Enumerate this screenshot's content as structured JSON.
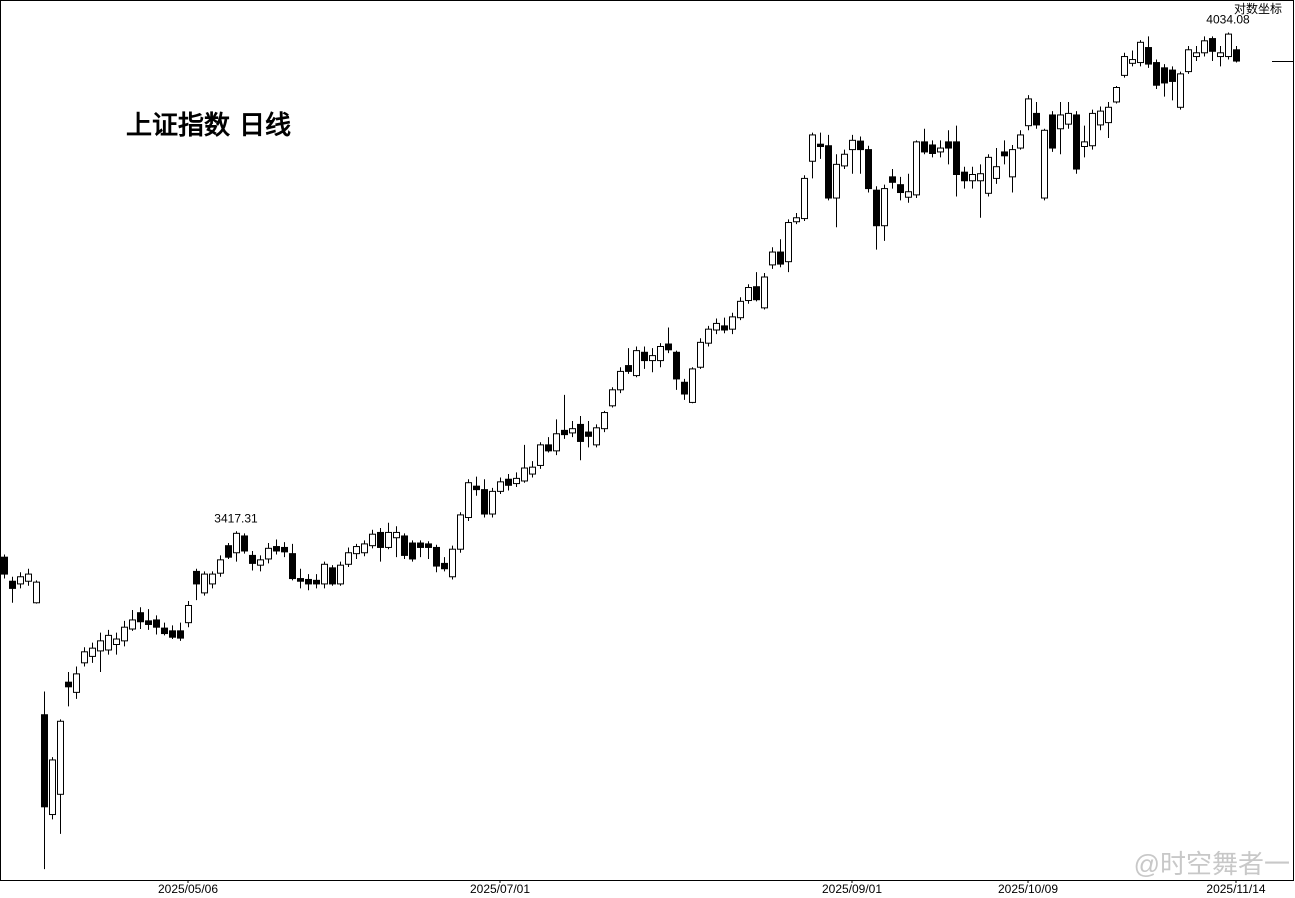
{
  "chart_data": {
    "type": "candlestick",
    "title": "上证指数 日线",
    "scale_label": "对数坐标",
    "watermark": "@时空舞者一",
    "log_scale": true,
    "up_color": "#ffffff",
    "down_color": "#000000",
    "ylim": [
      3043,
      4078
    ],
    "xlim": [
      -0.5,
      158.5
    ],
    "xticks": [
      {
        "value": 23,
        "label": "2025/05/06"
      },
      {
        "value": 62,
        "label": "2025/07/01"
      },
      {
        "value": 106,
        "label": "2025/09/01"
      },
      {
        "value": 128,
        "label": "2025/10/09"
      },
      {
        "value": 154,
        "label": "2025/11/14"
      }
    ],
    "annotated": [
      29,
      153
    ],
    "candles": [
      [
        3388,
        3391,
        3364,
        3369
      ],
      [
        3361,
        3366,
        3337,
        3353
      ],
      [
        3358,
        3371,
        3353,
        3366
      ],
      [
        3361,
        3375,
        3356,
        3369
      ],
      [
        3337,
        3362,
        3336,
        3360
      ],
      [
        3215,
        3240,
        3054,
        3118
      ],
      [
        3110,
        3170,
        3105,
        3167
      ],
      [
        3131,
        3210,
        3090,
        3208
      ],
      [
        3250,
        3261,
        3224,
        3245
      ],
      [
        3239,
        3267,
        3232,
        3259
      ],
      [
        3271,
        3288,
        3267,
        3283
      ],
      [
        3278,
        3293,
        3271,
        3287
      ],
      [
        3284,
        3304,
        3261,
        3295
      ],
      [
        3285,
        3307,
        3280,
        3301
      ],
      [
        3291,
        3304,
        3280,
        3297
      ],
      [
        3295,
        3317,
        3289,
        3310
      ],
      [
        3308,
        3329,
        3306,
        3318
      ],
      [
        3326,
        3332,
        3308,
        3316
      ],
      [
        3317,
        3330,
        3307,
        3313
      ],
      [
        3318,
        3323,
        3302,
        3310
      ],
      [
        3309,
        3315,
        3301,
        3303
      ],
      [
        3306,
        3312,
        3297,
        3299
      ],
      [
        3306,
        3315,
        3295,
        3298
      ],
      [
        3315,
        3339,
        3310,
        3334
      ],
      [
        3372,
        3375,
        3340,
        3358
      ],
      [
        3348,
        3372,
        3345,
        3369
      ],
      [
        3358,
        3372,
        3353,
        3369
      ],
      [
        3370,
        3390,
        3366,
        3385
      ],
      [
        3401,
        3404,
        3386,
        3388
      ],
      [
        3393,
        3417.31,
        3383,
        3415
      ],
      [
        3412,
        3415,
        3392,
        3395
      ],
      [
        3390,
        3395,
        3373,
        3381
      ],
      [
        3379,
        3390,
        3372,
        3385
      ],
      [
        3386,
        3404,
        3381,
        3398
      ],
      [
        3400,
        3408,
        3391,
        3395
      ],
      [
        3399,
        3405,
        3388,
        3394
      ],
      [
        3392,
        3403,
        3362,
        3364
      ],
      [
        3364,
        3375,
        3353,
        3361
      ],
      [
        3363,
        3369,
        3351,
        3358
      ],
      [
        3362,
        3369,
        3353,
        3358
      ],
      [
        3358,
        3383,
        3353,
        3380
      ],
      [
        3376,
        3379,
        3356,
        3358
      ],
      [
        3358,
        3383,
        3356,
        3379
      ],
      [
        3380,
        3399,
        3377,
        3393
      ],
      [
        3392,
        3403,
        3386,
        3400
      ],
      [
        3393,
        3407,
        3389,
        3403
      ],
      [
        3401,
        3419,
        3398,
        3414
      ],
      [
        3416,
        3421,
        3383,
        3399
      ],
      [
        3399,
        3427,
        3397,
        3416
      ],
      [
        3410,
        3423,
        3388,
        3416
      ],
      [
        3412,
        3415,
        3386,
        3390
      ],
      [
        3404,
        3407,
        3383,
        3386
      ],
      [
        3404,
        3407,
        3388,
        3399
      ],
      [
        3403,
        3406,
        3386,
        3399
      ],
      [
        3399,
        3402,
        3371,
        3378
      ],
      [
        3381,
        3388,
        3372,
        3375
      ],
      [
        3366,
        3401,
        3363,
        3397
      ],
      [
        3397,
        3439,
        3393,
        3436
      ],
      [
        3433,
        3477,
        3429,
        3473
      ],
      [
        3469,
        3480,
        3458,
        3465
      ],
      [
        3465,
        3477,
        3433,
        3437
      ],
      [
        3437,
        3467,
        3433,
        3463
      ],
      [
        3463,
        3479,
        3460,
        3474
      ],
      [
        3477,
        3483,
        3464,
        3470
      ],
      [
        3472,
        3485,
        3468,
        3478
      ],
      [
        3475,
        3517,
        3473,
        3490
      ],
      [
        3483,
        3498,
        3479,
        3491
      ],
      [
        3493,
        3520,
        3489,
        3517
      ],
      [
        3517,
        3526,
        3508,
        3510
      ],
      [
        3510,
        3547,
        3505,
        3530
      ],
      [
        3534,
        3576,
        3524,
        3529
      ],
      [
        3531,
        3545,
        3526,
        3536
      ],
      [
        3541,
        3551,
        3499,
        3521
      ],
      [
        3532,
        3545,
        3514,
        3527
      ],
      [
        3517,
        3541,
        3514,
        3537
      ],
      [
        3536,
        3557,
        3532,
        3555
      ],
      [
        3563,
        3585,
        3561,
        3582
      ],
      [
        3582,
        3609,
        3578,
        3604
      ],
      [
        3611,
        3632,
        3601,
        3604
      ],
      [
        3599,
        3634,
        3597,
        3629
      ],
      [
        3627,
        3634,
        3607,
        3617
      ],
      [
        3617,
        3632,
        3603,
        3623
      ],
      [
        3617,
        3638,
        3609,
        3634
      ],
      [
        3637,
        3657,
        3626,
        3630
      ],
      [
        3627,
        3629,
        3582,
        3595
      ],
      [
        3591,
        3595,
        3570,
        3577
      ],
      [
        3567,
        3609,
        3566,
        3607
      ],
      [
        3609,
        3644,
        3607,
        3639
      ],
      [
        3638,
        3659,
        3634,
        3655
      ],
      [
        3654,
        3668,
        3649,
        3662
      ],
      [
        3659,
        3669,
        3650,
        3654
      ],
      [
        3655,
        3675,
        3649,
        3670
      ],
      [
        3669,
        3694,
        3666,
        3689
      ],
      [
        3690,
        3710,
        3686,
        3706
      ],
      [
        3707,
        3725,
        3689,
        3691
      ],
      [
        3681,
        3724,
        3679,
        3719
      ],
      [
        3734,
        3756,
        3729,
        3750
      ],
      [
        3750,
        3766,
        3731,
        3735
      ],
      [
        3738,
        3791,
        3725,
        3787
      ],
      [
        3788,
        3799,
        3785,
        3793
      ],
      [
        3792,
        3847,
        3789,
        3843
      ],
      [
        3865,
        3902,
        3843,
        3899
      ],
      [
        3887,
        3902,
        3868,
        3884
      ],
      [
        3885,
        3899,
        3815,
        3818
      ],
      [
        3818,
        3874,
        3781,
        3861
      ],
      [
        3859,
        3880,
        3855,
        3874
      ],
      [
        3880,
        3899,
        3849,
        3892
      ],
      [
        3891,
        3897,
        3849,
        3880
      ],
      [
        3880,
        3885,
        3825,
        3830
      ],
      [
        3828,
        3833,
        3753,
        3783
      ],
      [
        3783,
        3835,
        3764,
        3830
      ],
      [
        3845,
        3855,
        3830,
        3838
      ],
      [
        3835,
        3845,
        3815,
        3825
      ],
      [
        3819,
        3849,
        3812,
        3826
      ],
      [
        3822,
        3892,
        3818,
        3890
      ],
      [
        3890,
        3907,
        3874,
        3877
      ],
      [
        3886,
        3892,
        3870,
        3875
      ],
      [
        3877,
        3892,
        3870,
        3882
      ],
      [
        3890,
        3905,
        3861,
        3882
      ],
      [
        3890,
        3911,
        3820,
        3848
      ],
      [
        3851,
        3858,
        3830,
        3840
      ],
      [
        3840,
        3858,
        3830,
        3848
      ],
      [
        3840,
        3861,
        3793,
        3849
      ],
      [
        3824,
        3874,
        3820,
        3870
      ],
      [
        3843,
        3882,
        3836,
        3858
      ],
      [
        3877,
        3892,
        3861,
        3872
      ],
      [
        3845,
        3886,
        3825,
        3880
      ],
      [
        3882,
        3905,
        3880,
        3899
      ],
      [
        3911,
        3951,
        3905,
        3946
      ],
      [
        3927,
        3942,
        3907,
        3912
      ],
      [
        3818,
        3907,
        3815,
        3905
      ],
      [
        3925,
        3930,
        3877,
        3882
      ],
      [
        3907,
        3942,
        3874,
        3925
      ],
      [
        3913,
        3942,
        3907,
        3927
      ],
      [
        3925,
        3930,
        3849,
        3855
      ],
      [
        3884,
        3911,
        3870,
        3890
      ],
      [
        3885,
        3932,
        3880,
        3927
      ],
      [
        3912,
        3936,
        3905,
        3930
      ],
      [
        3915,
        3942,
        3895,
        3935
      ],
      [
        3942,
        3963,
        3940,
        3961
      ],
      [
        3977,
        4007,
        3974,
        4002
      ],
      [
        3993,
        4010,
        3989,
        3998
      ],
      [
        3994,
        4024,
        3989,
        4021
      ],
      [
        4014,
        4029,
        3987,
        3992
      ],
      [
        3994,
        3998,
        3959,
        3964
      ],
      [
        3987,
        3992,
        3949,
        3967
      ],
      [
        3984,
        3989,
        3944,
        3969
      ],
      [
        3935,
        3982,
        3932,
        3979
      ],
      [
        3982,
        4016,
        3979,
        4011
      ],
      [
        4002,
        4016,
        3996,
        4007
      ],
      [
        4007,
        4029,
        4002,
        4023
      ],
      [
        4026,
        4029,
        3996,
        4009
      ],
      [
        4002,
        4016,
        3989,
        4007
      ],
      [
        4002,
        4034.08,
        3998,
        4032
      ],
      [
        4011,
        4016,
        3994,
        3996
      ]
    ]
  }
}
